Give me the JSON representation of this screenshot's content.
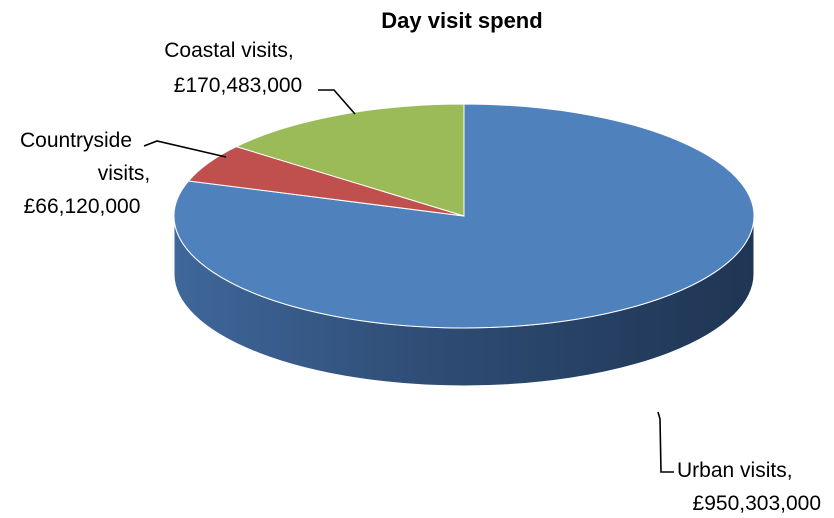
{
  "chart_data": {
    "type": "pie",
    "title": "Day visit spend",
    "slices": [
      {
        "label": "Urban visits",
        "value": 950303000,
        "value_text": "£950,303,000",
        "color": "#4F81BD"
      },
      {
        "label": "Countryside visits",
        "value": 66120000,
        "value_text": "£66,120,000",
        "color": "#C0504D"
      },
      {
        "label": "Coastal visits",
        "value": 170483000,
        "value_text": "£170,483,000",
        "color": "#9BBB59"
      }
    ],
    "style": "3d",
    "legend": "none"
  },
  "labels": {
    "urban": {
      "line1": "Urban visits,",
      "line2": "£950,303,000"
    },
    "countryside": {
      "line1": "Countryside",
      "line2": "visits,",
      "line3": "£66,120,000"
    },
    "coastal": {
      "line1": "Coastal visits,",
      "line2": "£170,483,000"
    }
  }
}
